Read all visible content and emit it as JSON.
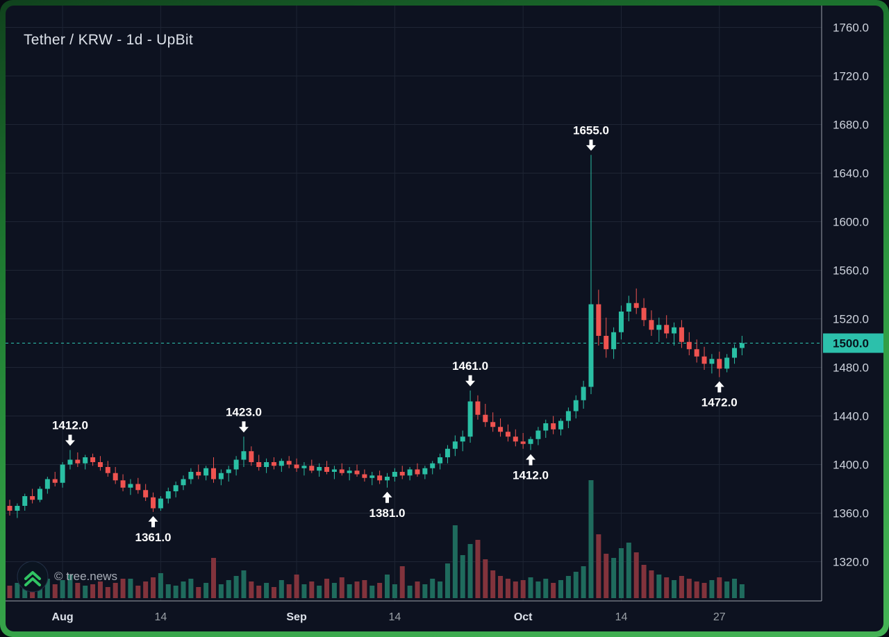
{
  "title": "Tether / KRW - 1d - UpBit",
  "watermark": {
    "text": "© tree.news"
  },
  "colors": {
    "background": "#0d1220",
    "grid": "#1e2534",
    "axis_line": "#9aa0aa",
    "text_primary": "#dde2ea",
    "text_secondary": "#9aa0a6",
    "axis_text": "#ced3dd",
    "up": "#2abfa4",
    "down": "#ef5350",
    "volume_up": "#1f6b5d",
    "volume_down": "#82333c",
    "price_line": "#2fc7b2",
    "price_label_bg": "#2cc0ab",
    "price_label_text": "#07131d",
    "annotation_text": "#ffffff",
    "frame_green": "#2f9b43",
    "logo_green": "#30c463"
  },
  "price_axis": {
    "ticks": [
      {
        "label": "1760.0",
        "value": 1760
      },
      {
        "label": "1720.0",
        "value": 1720
      },
      {
        "label": "1680.0",
        "value": 1680
      },
      {
        "label": "1640.0",
        "value": 1640
      },
      {
        "label": "1600.0",
        "value": 1600
      },
      {
        "label": "1560.0",
        "value": 1560
      },
      {
        "label": "1520.0",
        "value": 1520
      },
      {
        "label": "1480.0",
        "value": 1480
      },
      {
        "label": "1440.0",
        "value": 1440
      },
      {
        "label": "1400.0",
        "value": 1400
      },
      {
        "label": "1360.0",
        "value": 1360
      },
      {
        "label": "1320.0",
        "value": 1320
      }
    ]
  },
  "time_axis": {
    "ticks": [
      {
        "label": "Aug",
        "index": 7,
        "major": true
      },
      {
        "label": "14",
        "index": 20,
        "major": false
      },
      {
        "label": "Sep",
        "index": 38,
        "major": true
      },
      {
        "label": "14",
        "index": 51,
        "major": false
      },
      {
        "label": "Oct",
        "index": 68,
        "major": true
      },
      {
        "label": "14",
        "index": 81,
        "major": false
      },
      {
        "label": "27",
        "index": 94,
        "major": false
      }
    ]
  },
  "chart_data": {
    "type": "candlestick",
    "title": "Tether / KRW - 1d - UpBit",
    "symbol": "Tether / KRW",
    "interval": "1d",
    "exchange": "UpBit",
    "ylim": [
      1320,
      1760
    ],
    "grid": true,
    "current_price": {
      "value": 1500,
      "label": "1500.0",
      "style": "dashed"
    },
    "columns": [
      "date",
      "open",
      "high",
      "low",
      "close",
      "volume"
    ],
    "rows": [
      [
        "Jul 25",
        1366,
        1371,
        1358,
        1362,
        18
      ],
      [
        "Jul 26",
        1362,
        1368,
        1356,
        1366,
        22
      ],
      [
        "Jul 27",
        1366,
        1376,
        1362,
        1374,
        30
      ],
      [
        "Jul 28",
        1374,
        1380,
        1368,
        1371,
        16
      ],
      [
        "Jul 29",
        1371,
        1382,
        1369,
        1380,
        24
      ],
      [
        "Jul 30",
        1380,
        1390,
        1376,
        1388,
        28
      ],
      [
        "Jul 31",
        1388,
        1394,
        1382,
        1385,
        20
      ],
      [
        "Aug 1",
        1385,
        1402,
        1381,
        1400,
        26
      ],
      [
        "Aug 2",
        1400,
        1412,
        1396,
        1404,
        34
      ],
      [
        "Aug 3",
        1404,
        1410,
        1398,
        1401,
        22
      ],
      [
        "Aug 4",
        1401,
        1408,
        1396,
        1406,
        18
      ],
      [
        "Aug 5",
        1406,
        1409,
        1399,
        1402,
        20
      ],
      [
        "Aug 6",
        1402,
        1407,
        1395,
        1398,
        24
      ],
      [
        "Aug 7",
        1398,
        1403,
        1390,
        1393,
        16
      ],
      [
        "Aug 8",
        1393,
        1398,
        1384,
        1387,
        22
      ],
      [
        "Aug 9",
        1387,
        1392,
        1378,
        1381,
        28
      ],
      [
        "Aug 10",
        1381,
        1388,
        1375,
        1384,
        28
      ],
      [
        "Aug 11",
        1384,
        1389,
        1376,
        1379,
        18
      ],
      [
        "Aug 12",
        1379,
        1384,
        1370,
        1373,
        24
      ],
      [
        "Aug 13",
        1373,
        1377,
        1361,
        1364,
        30
      ],
      [
        "Aug 14",
        1364,
        1374,
        1362,
        1372,
        36
      ],
      [
        "Aug 15",
        1372,
        1381,
        1368,
        1378,
        20
      ],
      [
        "Aug 16",
        1378,
        1386,
        1373,
        1383,
        18
      ],
      [
        "Aug 17",
        1383,
        1391,
        1379,
        1388,
        24
      ],
      [
        "Aug 18",
        1388,
        1397,
        1384,
        1394,
        28
      ],
      [
        "Aug 19",
        1394,
        1400,
        1388,
        1391,
        16
      ],
      [
        "Aug 20",
        1391,
        1399,
        1387,
        1397,
        22
      ],
      [
        "Aug 21",
        1397,
        1406,
        1385,
        1388,
        58
      ],
      [
        "Aug 22",
        1388,
        1396,
        1383,
        1393,
        20
      ],
      [
        "Aug 23",
        1393,
        1399,
        1386,
        1396,
        26
      ],
      [
        "Aug 24",
        1396,
        1407,
        1391,
        1404,
        32
      ],
      [
        "Aug 25",
        1404,
        1423,
        1398,
        1411,
        40
      ],
      [
        "Aug 26",
        1411,
        1415,
        1399,
        1402,
        24
      ],
      [
        "Aug 27",
        1402,
        1408,
        1395,
        1398,
        18
      ],
      [
        "Aug 28",
        1398,
        1405,
        1393,
        1402,
        22
      ],
      [
        "Aug 29",
        1402,
        1406,
        1396,
        1399,
        16
      ],
      [
        "Aug 30",
        1399,
        1405,
        1394,
        1403,
        26
      ],
      [
        "Aug 31",
        1403,
        1407,
        1397,
        1400,
        20
      ],
      [
        "Sep 1",
        1400,
        1405,
        1394,
        1397,
        34
      ],
      [
        "Sep 2",
        1397,
        1402,
        1391,
        1399,
        20
      ],
      [
        "Sep 3",
        1399,
        1404,
        1393,
        1395,
        24
      ],
      [
        "Sep 4",
        1395,
        1401,
        1390,
        1398,
        18
      ],
      [
        "Sep 5",
        1398,
        1403,
        1392,
        1394,
        28
      ],
      [
        "Sep 6",
        1394,
        1399,
        1388,
        1396,
        22
      ],
      [
        "Sep 7",
        1396,
        1401,
        1391,
        1393,
        30
      ],
      [
        "Sep 8",
        1393,
        1398,
        1387,
        1395,
        20
      ],
      [
        "Sep 9",
        1395,
        1400,
        1390,
        1392,
        24
      ],
      [
        "Sep 10",
        1392,
        1396,
        1386,
        1389,
        26
      ],
      [
        "Sep 11",
        1389,
        1394,
        1383,
        1391,
        18
      ],
      [
        "Sep 12",
        1391,
        1395,
        1384,
        1387,
        22
      ],
      [
        "Sep 13",
        1387,
        1393,
        1381,
        1390,
        34
      ],
      [
        "Sep 14",
        1390,
        1397,
        1386,
        1394,
        20
      ],
      [
        "Sep 15",
        1394,
        1399,
        1388,
        1391,
        46
      ],
      [
        "Sep 16",
        1391,
        1398,
        1387,
        1396,
        18
      ],
      [
        "Sep 17",
        1396,
        1401,
        1390,
        1392,
        24
      ],
      [
        "Sep 18",
        1392,
        1399,
        1388,
        1397,
        20
      ],
      [
        "Sep 19",
        1397,
        1403,
        1392,
        1401,
        28
      ],
      [
        "Sep 20",
        1401,
        1409,
        1396,
        1406,
        24
      ],
      [
        "Sep 21",
        1406,
        1416,
        1401,
        1413,
        50
      ],
      [
        "Sep 22",
        1413,
        1424,
        1407,
        1419,
        105
      ],
      [
        "Sep 23",
        1419,
        1428,
        1411,
        1423,
        62
      ],
      [
        "Sep 24",
        1423,
        1461,
        1418,
        1452,
        78
      ],
      [
        "Sep 25",
        1452,
        1457,
        1437,
        1441,
        84
      ],
      [
        "Sep 26",
        1441,
        1450,
        1431,
        1435,
        56
      ],
      [
        "Sep 27",
        1435,
        1443,
        1427,
        1431,
        40
      ],
      [
        "Sep 28",
        1431,
        1438,
        1423,
        1427,
        32
      ],
      [
        "Sep 29",
        1427,
        1433,
        1419,
        1423,
        28
      ],
      [
        "Sep 30",
        1423,
        1429,
        1415,
        1419,
        24
      ],
      [
        "Oct 1",
        1419,
        1426,
        1413,
        1417,
        26
      ],
      [
        "Oct 2",
        1417,
        1423,
        1412,
        1421,
        30
      ],
      [
        "Oct 3",
        1421,
        1431,
        1416,
        1428,
        24
      ],
      [
        "Oct 4",
        1428,
        1437,
        1422,
        1434,
        28
      ],
      [
        "Oct 5",
        1434,
        1440,
        1425,
        1429,
        22
      ],
      [
        "Oct 6",
        1429,
        1438,
        1424,
        1436,
        26
      ],
      [
        "Oct 7",
        1436,
        1447,
        1430,
        1444,
        32
      ],
      [
        "Oct 8",
        1444,
        1457,
        1438,
        1453,
        38
      ],
      [
        "Oct 9",
        1453,
        1469,
        1446,
        1464,
        46
      ],
      [
        "Oct 10",
        1464,
        1655,
        1458,
        1532,
        170
      ],
      [
        "Oct 11",
        1532,
        1544,
        1498,
        1506,
        92
      ],
      [
        "Oct 12",
        1506,
        1521,
        1488,
        1495,
        64
      ],
      [
        "Oct 13",
        1495,
        1513,
        1487,
        1509,
        58
      ],
      [
        "Oct 14",
        1509,
        1531,
        1503,
        1526,
        72
      ],
      [
        "Oct 15",
        1526,
        1539,
        1518,
        1533,
        80
      ],
      [
        "Oct 16",
        1533,
        1545,
        1524,
        1529,
        66
      ],
      [
        "Oct 17",
        1529,
        1537,
        1514,
        1519,
        48
      ],
      [
        "Oct 18",
        1519,
        1527,
        1506,
        1511,
        40
      ],
      [
        "Oct 19",
        1511,
        1521,
        1501,
        1515,
        34
      ],
      [
        "Oct 20",
        1515,
        1523,
        1504,
        1508,
        30
      ],
      [
        "Oct 21",
        1508,
        1517,
        1498,
        1513,
        26
      ],
      [
        "Oct 22",
        1513,
        1519,
        1496,
        1501,
        32
      ],
      [
        "Oct 23",
        1501,
        1509,
        1490,
        1495,
        28
      ],
      [
        "Oct 24",
        1495,
        1503,
        1484,
        1489,
        24
      ],
      [
        "Oct 25",
        1489,
        1497,
        1478,
        1483,
        22
      ],
      [
        "Oct 26",
        1483,
        1491,
        1475,
        1487,
        26
      ],
      [
        "Oct 27",
        1487,
        1493,
        1472,
        1479,
        30
      ],
      [
        "Oct 28",
        1479,
        1491,
        1476,
        1488,
        24
      ],
      [
        "Oct 29",
        1488,
        1499,
        1483,
        1496,
        28
      ],
      [
        "Oct 30",
        1496,
        1506,
        1490,
        1500,
        20
      ]
    ],
    "annotations": [
      {
        "label": "1412.0",
        "date": "Aug 2",
        "index": 8,
        "price": 1412,
        "placement": "above"
      },
      {
        "label": "1361.0",
        "date": "Aug 13",
        "index": 19,
        "price": 1361,
        "placement": "below"
      },
      {
        "label": "1423.0",
        "date": "Aug 25",
        "index": 31,
        "price": 1423,
        "placement": "above"
      },
      {
        "label": "1381.0",
        "date": "Sep 13",
        "index": 50,
        "price": 1381,
        "placement": "below"
      },
      {
        "label": "1461.0",
        "date": "Sep 24",
        "index": 61,
        "price": 1461,
        "placement": "above"
      },
      {
        "label": "1412.0",
        "date": "Oct 2",
        "index": 69,
        "price": 1412,
        "placement": "below"
      },
      {
        "label": "1655.0",
        "date": "Oct 10",
        "index": 77,
        "price": 1655,
        "placement": "above"
      },
      {
        "label": "1472.0",
        "date": "Oct 27",
        "index": 94,
        "price": 1472,
        "placement": "below"
      }
    ]
  }
}
